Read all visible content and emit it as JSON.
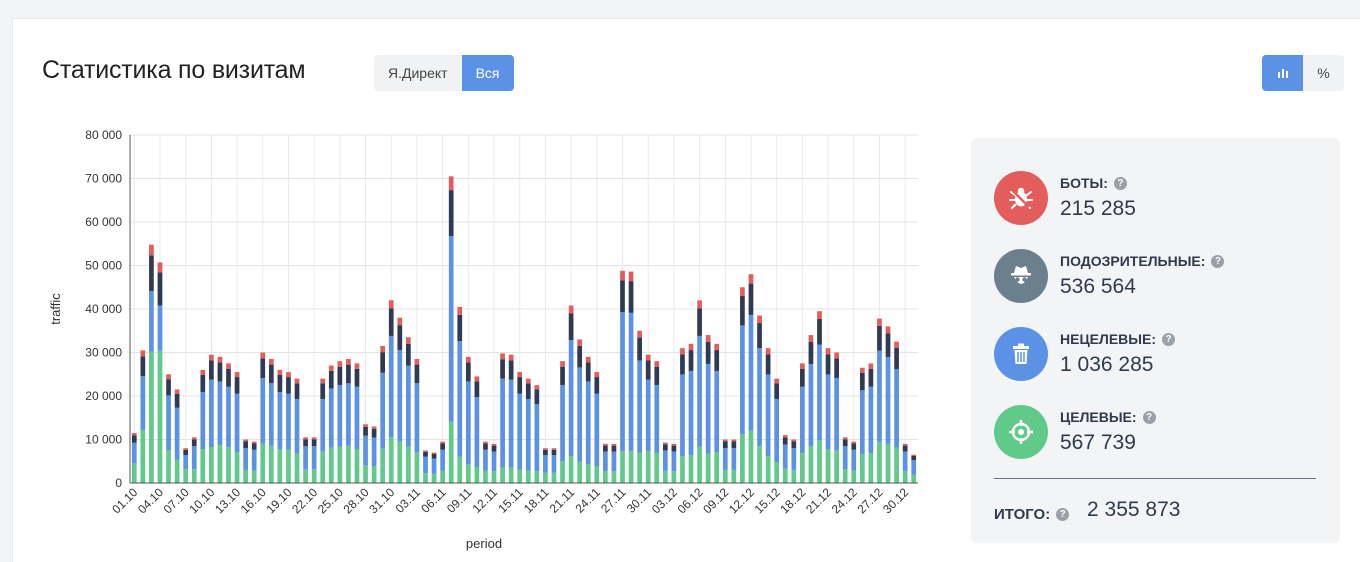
{
  "title": "Статистика по визитам",
  "source_toggle": [
    {
      "label": "Я.Директ",
      "active": false
    },
    {
      "label": "Вся",
      "active": true
    }
  ],
  "view_toggle": [
    {
      "icon": "bar-chart-icon",
      "active": true
    },
    {
      "label": "%",
      "active": false
    }
  ],
  "colors": {
    "bots": "#e35d5d",
    "suspicious": "#2f3b52",
    "nontarget": "#5b92e5",
    "target": "#5fca8a"
  },
  "chart_data": {
    "type": "bar",
    "stacked": true,
    "xlabel": "period",
    "ylabel": "traffic",
    "ylim": [
      0,
      80000
    ],
    "yticks": [
      "0",
      "10 000",
      "20 000",
      "30 000",
      "40 000",
      "50 000",
      "60 000",
      "70 000",
      "80 000"
    ],
    "x_tick_labels": [
      "01.10",
      "04.10",
      "07.10",
      "10.10",
      "13.10",
      "16.10",
      "19.10",
      "22.10",
      "25.10",
      "28.10",
      "31.10",
      "03.11",
      "06.11",
      "09.11",
      "12.11",
      "15.11",
      "18.11",
      "21.11",
      "24.11",
      "27.11",
      "30.11",
      "03.12",
      "06.12",
      "09.12",
      "12.12",
      "15.12",
      "18.12",
      "21.12",
      "24.12",
      "27.12",
      "30.12"
    ],
    "grid": true,
    "series_names": [
      "target",
      "nontarget",
      "suspicious",
      "bots"
    ],
    "totals": [
      11500,
      30500,
      54800,
      50700,
      25000,
      21500,
      8000,
      10500,
      26000,
      29500,
      29000,
      27500,
      25500,
      10000,
      9500,
      30000,
      28500,
      26000,
      25500,
      24000,
      10500,
      10500,
      24000,
      27000,
      28000,
      28500,
      27500,
      13500,
      13000,
      31500,
      42000,
      38000,
      33500,
      28500,
      7500,
      7000,
      9500,
      70500,
      40500,
      29000,
      24500,
      9500,
      9000,
      29800,
      29500,
      25500,
      24000,
      22500,
      8000,
      8000,
      28000,
      40800,
      33000,
      29000,
      25500,
      9000,
      9000,
      48800,
      48600,
      35000,
      29500,
      28000,
      9300,
      9000,
      31000,
      32000,
      42000,
      34000,
      32000,
      10000,
      10000,
      45000,
      48000,
      38500,
      31000,
      24000,
      11000,
      10000,
      27500,
      34000,
      39500,
      31000,
      30000,
      10500,
      9500,
      26500,
      27500,
      37800,
      36000,
      32500,
      9000,
      6500
    ],
    "shares": {
      "target": [
        0.4,
        0.4,
        0.55,
        0.6,
        0.3,
        0.25,
        0.4,
        0.3,
        0.3,
        0.28,
        0.3,
        0.3,
        0.28,
        0.3,
        0.3,
        0.3,
        0.3,
        0.3,
        0.3,
        0.28,
        0.3,
        0.3,
        0.3,
        0.3,
        0.3,
        0.3,
        0.28,
        0.3,
        0.3,
        0.25,
        0.25,
        0.25,
        0.25,
        0.25,
        0.3,
        0.3,
        0.3,
        0.2,
        0.15,
        0.15,
        0.15,
        0.3,
        0.3,
        0.12,
        0.12,
        0.12,
        0.12,
        0.12,
        0.3,
        0.3,
        0.18,
        0.15,
        0.15,
        0.15,
        0.15,
        0.3,
        0.3,
        0.15,
        0.15,
        0.2,
        0.25,
        0.25,
        0.3,
        0.3,
        0.2,
        0.2,
        0.2,
        0.2,
        0.22,
        0.3,
        0.3,
        0.25,
        0.25,
        0.22,
        0.2,
        0.2,
        0.3,
        0.3,
        0.25,
        0.25,
        0.25,
        0.25,
        0.25,
        0.3,
        0.3,
        0.25,
        0.25,
        0.25,
        0.25,
        0.25,
        0.3,
        0.3
      ],
      "nontarget_of_total": 0.53,
      "suspicious_of_total": 0.15,
      "bots_of_total": 0.045
    }
  },
  "stats": {
    "items": [
      {
        "key": "bots",
        "label": "БОТЫ:",
        "value": "215 285",
        "icon": "bug-icon"
      },
      {
        "key": "suspicious",
        "label": "ПОДОЗРИТЕЛЬНЫЕ:",
        "value": "536 564",
        "icon": "spy-icon"
      },
      {
        "key": "nontarget",
        "label": "НЕЦЕЛЕВЫЕ:",
        "value": "1 036 285",
        "icon": "trash-icon"
      },
      {
        "key": "target",
        "label": "ЦЕЛЕВЫЕ:",
        "value": "567 739",
        "icon": "target-icon"
      }
    ],
    "help_glyph": "?",
    "total_label": "ИТОГО:",
    "total_value": "2 355 873"
  }
}
